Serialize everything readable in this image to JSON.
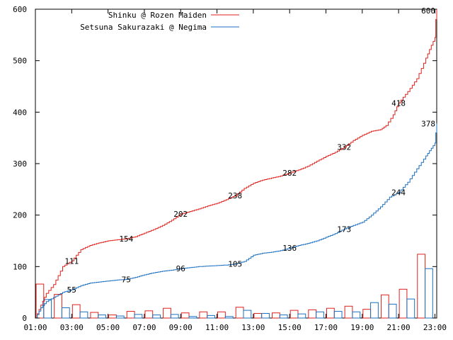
{
  "chart_data": {
    "type": "line",
    "title": "",
    "xlabel": "",
    "ylabel": "",
    "xlim": [
      1,
      23.1
    ],
    "ylim": [
      0,
      600
    ],
    "grid": false,
    "legend_position": "top-left",
    "y_ticks": [
      "0",
      "100",
      "200",
      "300",
      "400",
      "500",
      "600"
    ],
    "x_ticks": [
      {
        "x": 1,
        "label": "01:00"
      },
      {
        "x": 3,
        "label": "03:00"
      },
      {
        "x": 5,
        "label": "05:00"
      },
      {
        "x": 7,
        "label": "07:00"
      },
      {
        "x": 9,
        "label": "09:00"
      },
      {
        "x": 11,
        "label": "11:00"
      },
      {
        "x": 13,
        "label": "13:00"
      },
      {
        "x": 15,
        "label": "15:00"
      },
      {
        "x": 17,
        "label": "17:00"
      },
      {
        "x": 19,
        "label": "19:00"
      },
      {
        "x": 21,
        "label": "21:00"
      },
      {
        "x": 23,
        "label": "23:00"
      }
    ],
    "series": [
      {
        "name": "Shinku @ Rozen Maiden",
        "color": "#e0201c",
        "cumulative": [
          [
            1,
            0
          ],
          [
            1.3,
            25
          ],
          [
            1.6,
            48
          ],
          [
            2,
            65
          ],
          [
            2.5,
            100
          ],
          [
            3,
            111
          ],
          [
            3.5,
            133
          ],
          [
            4,
            141
          ],
          [
            4.5,
            146
          ],
          [
            5,
            150
          ],
          [
            5.5,
            152
          ],
          [
            6,
            154
          ],
          [
            6.5,
            158
          ],
          [
            7,
            165
          ],
          [
            7.5,
            172
          ],
          [
            8,
            180
          ],
          [
            8.5,
            190
          ],
          [
            9,
            202
          ],
          [
            9.5,
            207
          ],
          [
            10,
            212
          ],
          [
            10.5,
            218
          ],
          [
            11,
            223
          ],
          [
            11.5,
            230
          ],
          [
            12,
            238
          ],
          [
            12.5,
            252
          ],
          [
            13,
            262
          ],
          [
            13.5,
            268
          ],
          [
            14,
            272
          ],
          [
            14.5,
            276
          ],
          [
            15,
            282
          ],
          [
            15.5,
            288
          ],
          [
            16,
            295
          ],
          [
            16.5,
            305
          ],
          [
            17,
            314
          ],
          [
            17.5,
            322
          ],
          [
            18,
            332
          ],
          [
            18.5,
            345
          ],
          [
            19,
            355
          ],
          [
            19.5,
            363
          ],
          [
            20,
            366
          ],
          [
            20.3,
            374
          ],
          [
            20.7,
            395
          ],
          [
            21,
            418
          ],
          [
            21.5,
            440
          ],
          [
            22,
            465
          ],
          [
            22.5,
            505
          ],
          [
            22.8,
            530
          ],
          [
            23,
            545
          ],
          [
            23.05,
            580
          ],
          [
            23.1,
            600
          ]
        ],
        "point_labels": [
          {
            "x": 3,
            "y": 111,
            "text": "111"
          },
          {
            "x": 6,
            "y": 154,
            "text": "154"
          },
          {
            "x": 9,
            "y": 202,
            "text": "202"
          },
          {
            "x": 12,
            "y": 238,
            "text": "238"
          },
          {
            "x": 15,
            "y": 282,
            "text": "282"
          },
          {
            "x": 18,
            "y": 332,
            "text": "332"
          },
          {
            "x": 21,
            "y": 418,
            "text": "418"
          },
          {
            "x": 23.1,
            "y": 600,
            "text": "600"
          }
        ],
        "bars": [
          [
            1,
            66
          ],
          [
            2,
            46
          ],
          [
            3,
            26
          ],
          [
            4,
            11
          ],
          [
            5,
            6
          ],
          [
            6,
            13
          ],
          [
            7,
            14
          ],
          [
            8,
            19
          ],
          [
            9,
            10
          ],
          [
            10,
            12
          ],
          [
            11,
            12
          ],
          [
            12,
            21
          ],
          [
            13,
            9
          ],
          [
            14,
            10
          ],
          [
            15,
            15
          ],
          [
            16,
            16
          ],
          [
            17,
            19
          ],
          [
            18,
            23
          ],
          [
            19,
            17
          ],
          [
            20,
            45
          ],
          [
            21,
            56
          ],
          [
            22,
            124
          ]
        ]
      },
      {
        "name": "Setsuna Sakurazaki @ Negima",
        "color": "#1a70c0",
        "cumulative": [
          [
            1,
            0
          ],
          [
            1.3,
            20
          ],
          [
            1.6,
            32
          ],
          [
            2,
            40
          ],
          [
            2.5,
            50
          ],
          [
            3,
            55
          ],
          [
            3.5,
            63
          ],
          [
            4,
            68
          ],
          [
            4.5,
            70
          ],
          [
            5,
            72
          ],
          [
            5.5,
            74
          ],
          [
            6,
            75
          ],
          [
            6.5,
            79
          ],
          [
            7,
            84
          ],
          [
            7.5,
            88
          ],
          [
            8,
            91
          ],
          [
            8.5,
            93
          ],
          [
            9,
            96
          ],
          [
            9.5,
            98
          ],
          [
            10,
            100
          ],
          [
            10.5,
            101
          ],
          [
            11,
            102
          ],
          [
            11.5,
            103
          ],
          [
            12,
            105
          ],
          [
            12.5,
            110
          ],
          [
            13,
            122
          ],
          [
            13.5,
            126
          ],
          [
            14,
            128
          ],
          [
            14.5,
            131
          ],
          [
            15,
            136
          ],
          [
            15.5,
            141
          ],
          [
            16,
            145
          ],
          [
            16.5,
            150
          ],
          [
            17,
            157
          ],
          [
            17.5,
            164
          ],
          [
            18,
            173
          ],
          [
            18.5,
            180
          ],
          [
            19,
            186
          ],
          [
            19.5,
            200
          ],
          [
            20,
            216
          ],
          [
            20.5,
            235
          ],
          [
            21,
            244
          ],
          [
            21.5,
            264
          ],
          [
            22,
            290
          ],
          [
            22.5,
            315
          ],
          [
            22.8,
            330
          ],
          [
            23,
            340
          ],
          [
            23.05,
            360
          ],
          [
            23.1,
            378
          ]
        ],
        "point_labels": [
          {
            "x": 3,
            "y": 55,
            "text": "55"
          },
          {
            "x": 6,
            "y": 75,
            "text": "75"
          },
          {
            "x": 9,
            "y": 96,
            "text": "96"
          },
          {
            "x": 12,
            "y": 105,
            "text": "105"
          },
          {
            "x": 15,
            "y": 136,
            "text": "136"
          },
          {
            "x": 18,
            "y": 173,
            "text": "173"
          },
          {
            "x": 21,
            "y": 244,
            "text": "244"
          },
          {
            "x": 23.1,
            "y": 378,
            "text": "378"
          }
        ],
        "bars": [
          [
            1,
            36
          ],
          [
            2,
            20
          ],
          [
            3,
            12
          ],
          [
            4,
            6
          ],
          [
            5,
            4
          ],
          [
            6,
            7
          ],
          [
            7,
            6
          ],
          [
            8,
            7
          ],
          [
            9,
            3
          ],
          [
            10,
            5
          ],
          [
            11,
            3
          ],
          [
            12,
            15
          ],
          [
            13,
            9
          ],
          [
            14,
            6
          ],
          [
            15,
            8
          ],
          [
            16,
            12
          ],
          [
            17,
            13
          ],
          [
            18,
            12
          ],
          [
            19,
            30
          ],
          [
            20,
            27
          ],
          [
            21,
            37
          ],
          [
            22,
            96
          ]
        ]
      }
    ]
  }
}
